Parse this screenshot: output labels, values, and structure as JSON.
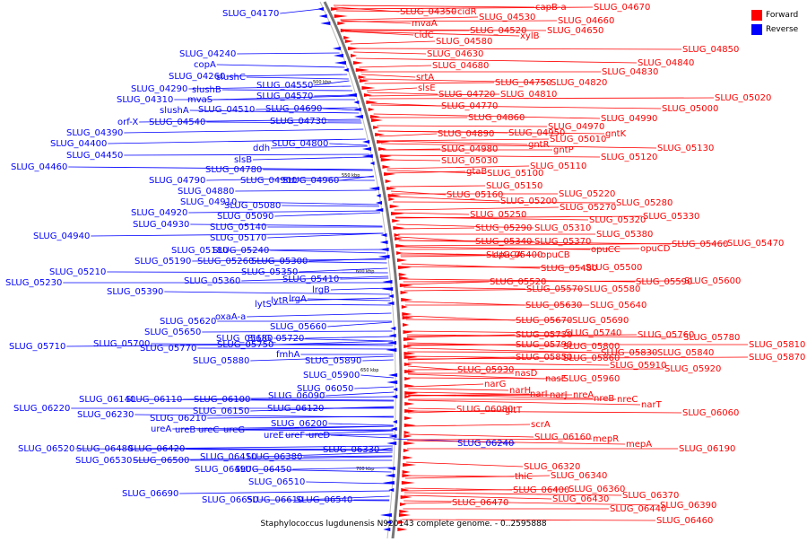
{
  "legend": {
    "forward_label": "Forward",
    "reverse_label": "Reverse",
    "forward_color": "#ff0000",
    "reverse_color": "#0000ff"
  },
  "caption": "Staphylococcus lugdunensis N920143 complete genome. - 0..2595888",
  "backbone": {
    "color": "#777777",
    "ticks": [
      "500 kbp",
      "550 kbp",
      "600 kbp",
      "650 kbp",
      "700 kbp"
    ]
  },
  "labels": {
    "reverse": [
      "SLUG_04170",
      "SLUG_04240",
      "copA",
      "SLUG_04260",
      "slushC",
      "SLUG_04290",
      "slushB",
      "mvaS",
      "SLUG_04310",
      "SLUG_04550",
      "SLUG_04570",
      "slushA",
      "SLUG_04510",
      "SLUG_04690",
      "orf-X",
      "SLUG_04540",
      "SLUG_04390",
      "SLUG_04730",
      "SLUG_04400",
      "SLUG_04450",
      "SLUG_04460",
      "ddh",
      "SLUG_04800",
      "slsB",
      "SLUG_04780",
      "SLUG_04790",
      "SLUG_04900",
      "SLUG_04960",
      "SLUG_04880",
      "SLUG_04910",
      "SLUG_04920",
      "SLUG_04930",
      "SLUG_04940",
      "SLUG_05080",
      "SLUG_05090",
      "SLUG_05140",
      "SLUG_05170",
      "SLUG_05180",
      "SLUG_05240",
      "SLUG_05190",
      "SLUG_05260",
      "SLUG_05300",
      "SLUG_05210",
      "SLUG_05350",
      "SLUG_05230",
      "SLUG_05360",
      "SLUG_05410",
      "SLUG_05390",
      "lrgB",
      "lrgA",
      "lytR",
      "lytS",
      "oxaA-a",
      "SLUG_05620",
      "SLUG_05660",
      "SLUG_05650",
      "SLUG_05680",
      "SLUG_05720",
      "SLUG_05700",
      "SLUG_05710",
      "SLUG_05770",
      "SLUG_05750",
      "fmhA",
      "SLUG_05880",
      "SLUG_05890",
      "SLUG_05900",
      "SLUG_06050",
      "SLUG_06140",
      "SLUG_06110",
      "SLUG_06100",
      "SLUG_06090",
      "SLUG_06220",
      "SLUG_06150",
      "SLUG_06120",
      "SLUG_06230",
      "SLUG_06210",
      "SLUG_06200",
      "ureA",
      "ureB",
      "ureC",
      "ureG",
      "ureE",
      "ureF",
      "ureD",
      "SLUG_06330",
      "SLUG_06520",
      "SLUG_06480",
      "SLUG_06420",
      "SLUG_06530",
      "SLUG_06500",
      "SLUG_06410",
      "SLUG_06380",
      "SLUG_06490",
      "SLUG_06450",
      "SLUG_06510",
      "SLUG_06690",
      "SLUG_06650",
      "SLUG_06610",
      "SLUG_06540",
      "SLUG_06240"
    ],
    "forward": [
      "SLUG_04350",
      "cidR",
      "SLUG_04530",
      "capB-a",
      "SLUG_04670",
      "mvaA",
      "SLUG_04660",
      "cidC",
      "SLUG_04520",
      "xylB",
      "SLUG_04650",
      "SLUG_04580",
      "SLUG_04630",
      "SLUG_04680",
      "srtA",
      "SLUG_04750",
      "SLUG_04820",
      "SLUG_04830",
      "SLUG_04840",
      "SLUG_04850",
      "slsE",
      "SLUG_04720",
      "SLUG_04810",
      "SLUG_04770",
      "SLUG_05020",
      "SLUG_05000",
      "SLUG_04860",
      "SLUG_04990",
      "SLUG_04970",
      "SLUG_04890",
      "SLUG_04950",
      "SLUG_05010",
      "gntK",
      "SLUG_04980",
      "gntR",
      "gntP",
      "SLUG_05130",
      "SLUG_05030",
      "SLUG_05110",
      "SLUG_05120",
      "gtaB",
      "SLUG_05100",
      "SLUG_05150",
      "SLUG_05160",
      "SLUG_05220",
      "SLUG_05200",
      "SLUG_05280",
      "SLUG_05270",
      "SLUG_05250",
      "SLUG_05330",
      "SLUG_05320",
      "SLUG_05290",
      "SLUG_05310",
      "SLUG_05380",
      "SLUG_05340",
      "SLUG_05370",
      "SLUG_05470",
      "opuCA",
      "opuCB",
      "opuCC",
      "opuCD",
      "SLUG_05460",
      "SLUG_05400",
      "SLUG_05480",
      "SLUG_05500",
      "SLUG_05520",
      "SLUG_05570",
      "SLUG_05580",
      "SLUG_05590",
      "SLUG_05600",
      "SLUG_05630",
      "SLUG_05640",
      "SLUG_05670",
      "SLUG_05690",
      "SLUG_05730",
      "SLUG_05740",
      "SLUG_05760",
      "SLUG_05780",
      "SLUG_05790",
      "SLUG_05800",
      "SLUG_05810",
      "SLUG_05830",
      "SLUG_05840",
      "SLUG_05850",
      "SLUG_05860",
      "SLUG_05870",
      "SLUG_05910",
      "SLUG_05920",
      "SLUG_05930",
      "nasD",
      "nasE",
      "SLUG_05960",
      "narG",
      "narH",
      "narI",
      "narJ",
      "nreA",
      "nreB",
      "nreC",
      "narT",
      "SLUG_06080",
      "gltT",
      "SLUG_06060",
      "scrA",
      "SLUG_06160",
      "mepR",
      "mepA",
      "SLUG_06190",
      "SLUG_06320",
      "thiC",
      "SLUG_06340",
      "SLUG_06400",
      "SLUG_06360",
      "SLUG_06370",
      "SLUG_06470",
      "SLUG_06430",
      "SLUG_06440",
      "SLUG_06390",
      "SLUG_06460"
    ]
  }
}
